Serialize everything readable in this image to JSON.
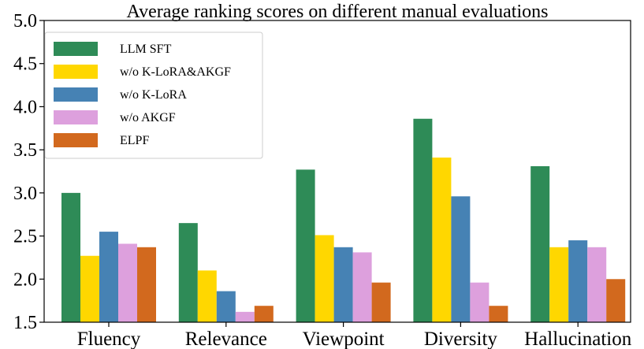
{
  "chart_data": {
    "type": "bar",
    "title": "Average ranking scores on different manual evaluations",
    "xlabel": "",
    "ylabel": "",
    "ylim": [
      1.5,
      5.0
    ],
    "yticks": [
      "1.5",
      "2.0",
      "2.5",
      "3.0",
      "3.5",
      "4.0",
      "4.5",
      "5.0"
    ],
    "categories": [
      "Fluency",
      "Relevance",
      "Viewpoint",
      "Diversity",
      "Hallucination"
    ],
    "series": [
      {
        "name": "LLM SFT",
        "color": "#2e8b57",
        "values": [
          3.0,
          2.65,
          3.27,
          3.86,
          3.31
        ]
      },
      {
        "name": "w/o K-LoRA&AKGF",
        "color": "#ffd700",
        "values": [
          2.27,
          2.1,
          2.51,
          3.41,
          2.37
        ]
      },
      {
        "name": "w/o K-LoRA",
        "color": "#4682b4",
        "values": [
          2.55,
          1.86,
          2.37,
          2.96,
          2.45
        ]
      },
      {
        "name": "w/o AKGF",
        "color": "#dda0dd",
        "values": [
          2.41,
          1.62,
          2.31,
          1.96,
          2.37
        ]
      },
      {
        "name": "ELPF",
        "color": "#d2691e",
        "values": [
          2.37,
          1.69,
          1.96,
          1.69,
          2.0
        ]
      }
    ],
    "legend_position": "top-left",
    "grid": false
  }
}
